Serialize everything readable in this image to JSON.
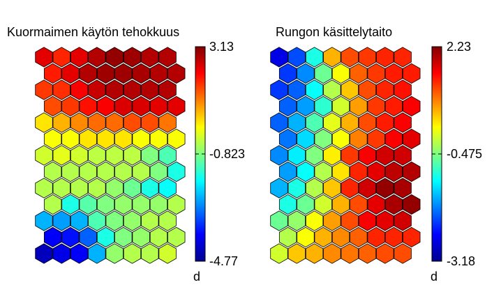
{
  "chart_data": [
    {
      "type": "heatmap",
      "title": "Kuormaimen käytön tehokkuus",
      "colorbar": {
        "ticks": [
          "3.13",
          "-0.823",
          "-4.77"
        ],
        "unit_label": "d",
        "min": -4.77,
        "max": 3.13
      },
      "grid_shape": "hexagonal",
      "rows": [
        [
          0.9,
          0.84,
          0.9,
          0.95,
          0.98,
          0.97,
          0.95,
          0.95
        ],
        [
          0.85,
          0.9,
          0.95,
          0.97,
          0.97,
          0.96,
          0.95,
          0.95
        ],
        [
          0.82,
          0.83,
          0.88,
          0.93,
          0.95,
          0.95,
          0.95,
          0.95
        ],
        [
          0.8,
          0.82,
          0.86,
          0.88,
          0.91,
          0.91,
          0.9,
          0.9
        ],
        [
          0.65,
          0.7,
          0.74,
          0.77,
          0.77,
          0.8,
          0.8,
          0.76
        ],
        [
          0.62,
          0.62,
          0.65,
          0.65,
          0.65,
          0.62,
          0.62,
          0.62
        ],
        [
          0.58,
          0.6,
          0.58,
          0.56,
          0.56,
          0.56,
          0.5,
          0.45
        ],
        [
          0.55,
          0.55,
          0.55,
          0.55,
          0.55,
          0.55,
          0.5,
          0.4
        ],
        [
          0.55,
          0.55,
          0.55,
          0.55,
          0.52,
          0.48,
          0.4,
          0.38
        ],
        [
          0.55,
          0.4,
          0.46,
          0.5,
          0.52,
          0.52,
          0.52,
          0.55
        ],
        [
          0.3,
          0.28,
          0.3,
          0.45,
          0.5,
          0.52,
          0.55,
          0.55
        ],
        [
          0.12,
          0.14,
          0.22,
          0.4,
          0.5,
          0.52,
          0.55,
          0.55
        ],
        [
          0.06,
          0.1,
          0.12,
          0.3,
          0.52,
          0.55,
          0.55,
          0.58
        ]
      ]
    },
    {
      "type": "heatmap",
      "title": "Rungon käsittelytaito",
      "colorbar": {
        "ticks": [
          "2.23",
          "-0.475",
          "-3.18"
        ],
        "unit_label": "d",
        "min": -3.18,
        "max": 2.23
      },
      "grid_shape": "hexagonal",
      "rows": [
        [
          0.1,
          0.2,
          0.4,
          0.7,
          0.8,
          0.82,
          0.84,
          0.84
        ],
        [
          0.18,
          0.26,
          0.48,
          0.62,
          0.78,
          0.82,
          0.85,
          0.85
        ],
        [
          0.18,
          0.22,
          0.38,
          0.55,
          0.68,
          0.8,
          0.84,
          0.86
        ],
        [
          0.22,
          0.28,
          0.42,
          0.58,
          0.72,
          0.82,
          0.85,
          0.88
        ],
        [
          0.22,
          0.3,
          0.45,
          0.6,
          0.7,
          0.8,
          0.85,
          0.88
        ],
        [
          0.24,
          0.34,
          0.5,
          0.62,
          0.75,
          0.82,
          0.88,
          0.9
        ],
        [
          0.26,
          0.36,
          0.5,
          0.64,
          0.82,
          0.88,
          0.92,
          0.92
        ],
        [
          0.28,
          0.38,
          0.55,
          0.65,
          0.84,
          0.9,
          0.94,
          0.95
        ],
        [
          0.3,
          0.4,
          0.55,
          0.68,
          0.84,
          0.92,
          0.98,
          0.96
        ],
        [
          0.4,
          0.48,
          0.58,
          0.7,
          0.8,
          0.9,
          0.96,
          0.98
        ],
        [
          0.48,
          0.52,
          0.62,
          0.72,
          0.8,
          0.88,
          0.9,
          0.92
        ],
        [
          0.55,
          0.62,
          0.7,
          0.74,
          0.78,
          0.84,
          0.84,
          0.84
        ],
        [
          0.58,
          0.68,
          0.7,
          0.74,
          0.76,
          0.78,
          0.8,
          0.8
        ]
      ]
    }
  ]
}
